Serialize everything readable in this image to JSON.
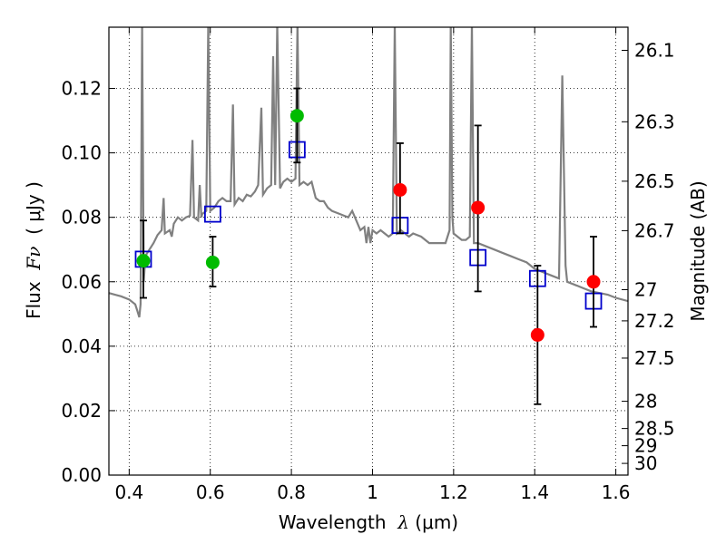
{
  "chart_data": {
    "type": "scatter",
    "xlabel_prefix": "Wavelength  ",
    "xlabel_symbol": "λ",
    "xlabel_unit": " (μm)",
    "ylabel_prefix": "Flux  ",
    "ylabel_symbol": "Fν",
    "ylabel_unit": "  ( μJy )",
    "y2label": "Magnitude (AB)",
    "xlim": [
      0.35,
      1.63
    ],
    "ylim": [
      0.0,
      0.139
    ],
    "grid": true,
    "x_ticks": [
      0.4,
      0.6,
      0.8,
      1.0,
      1.2,
      1.4,
      1.6
    ],
    "x_tick_labels": [
      "0.4",
      "0.6",
      "0.8",
      "1",
      "1.2",
      "1.4",
      "1.6"
    ],
    "y_ticks": [
      0.0,
      0.02,
      0.04,
      0.06,
      0.08,
      0.1,
      0.12
    ],
    "y_tick_labels": [
      "0.00",
      "0.02",
      "0.04",
      "0.06",
      "0.08",
      "0.10",
      "0.12"
    ],
    "mag_ticks": [
      26.1,
      26.3,
      26.5,
      26.7,
      27.0,
      27.2,
      27.5,
      28.0,
      28.5,
      29.0,
      30.0
    ],
    "mag_tick_labels": [
      "26.1",
      "26.3",
      "26.5",
      "26.7",
      "27",
      "27.2",
      "27.5",
      "28",
      "28.5",
      "29",
      "30"
    ],
    "model_spectrum": {
      "color": "#808080",
      "points": [
        [
          0.35,
          0.0565
        ],
        [
          0.38,
          0.0555
        ],
        [
          0.4,
          0.0545
        ],
        [
          0.415,
          0.053
        ],
        [
          0.42,
          0.051
        ],
        [
          0.425,
          0.049
        ],
        [
          0.428,
          0.053
        ],
        [
          0.432,
          0.14
        ],
        [
          0.436,
          0.06
        ],
        [
          0.44,
          0.068
        ],
        [
          0.45,
          0.07
        ],
        [
          0.46,
          0.072
        ],
        [
          0.47,
          0.0745
        ],
        [
          0.48,
          0.076
        ],
        [
          0.485,
          0.086
        ],
        [
          0.488,
          0.075
        ],
        [
          0.5,
          0.076
        ],
        [
          0.505,
          0.074
        ],
        [
          0.51,
          0.078
        ],
        [
          0.52,
          0.08
        ],
        [
          0.53,
          0.079
        ],
        [
          0.54,
          0.08
        ],
        [
          0.55,
          0.0805
        ],
        [
          0.556,
          0.104
        ],
        [
          0.56,
          0.08
        ],
        [
          0.57,
          0.079
        ],
        [
          0.574,
          0.09
        ],
        [
          0.578,
          0.08
        ],
        [
          0.58,
          0.081
        ],
        [
          0.59,
          0.082
        ],
        [
          0.595,
          0.14
        ],
        [
          0.6,
          0.082
        ],
        [
          0.61,
          0.083
        ],
        [
          0.62,
          0.085
        ],
        [
          0.63,
          0.086
        ],
        [
          0.64,
          0.085
        ],
        [
          0.65,
          0.085
        ],
        [
          0.656,
          0.115
        ],
        [
          0.66,
          0.084
        ],
        [
          0.67,
          0.086
        ],
        [
          0.68,
          0.085
        ],
        [
          0.69,
          0.087
        ],
        [
          0.7,
          0.0865
        ],
        [
          0.71,
          0.088
        ],
        [
          0.718,
          0.09
        ],
        [
          0.726,
          0.114
        ],
        [
          0.73,
          0.087
        ],
        [
          0.74,
          0.089
        ],
        [
          0.75,
          0.09
        ],
        [
          0.755,
          0.13
        ],
        [
          0.76,
          0.09
        ],
        [
          0.765,
          0.14
        ],
        [
          0.772,
          0.089
        ],
        [
          0.78,
          0.091
        ],
        [
          0.79,
          0.092
        ],
        [
          0.8,
          0.091
        ],
        [
          0.81,
          0.092
        ],
        [
          0.815,
          0.14
        ],
        [
          0.82,
          0.09
        ],
        [
          0.83,
          0.091
        ],
        [
          0.84,
          0.09
        ],
        [
          0.85,
          0.091
        ],
        [
          0.86,
          0.086
        ],
        [
          0.87,
          0.085
        ],
        [
          0.88,
          0.085
        ],
        [
          0.89,
          0.083
        ],
        [
          0.9,
          0.082
        ],
        [
          0.92,
          0.081
        ],
        [
          0.94,
          0.08
        ],
        [
          0.95,
          0.082
        ],
        [
          0.96,
          0.079
        ],
        [
          0.97,
          0.076
        ],
        [
          0.98,
          0.077
        ],
        [
          0.985,
          0.072
        ],
        [
          0.99,
          0.077
        ],
        [
          0.995,
          0.072
        ],
        [
          1.0,
          0.076
        ],
        [
          1.01,
          0.075
        ],
        [
          1.02,
          0.076
        ],
        [
          1.03,
          0.075
        ],
        [
          1.04,
          0.074
        ],
        [
          1.05,
          0.075
        ],
        [
          1.055,
          0.14
        ],
        [
          1.06,
          0.075
        ],
        [
          1.07,
          0.076
        ],
        [
          1.08,
          0.075
        ],
        [
          1.09,
          0.074
        ],
        [
          1.1,
          0.075
        ],
        [
          1.12,
          0.074
        ],
        [
          1.14,
          0.072
        ],
        [
          1.16,
          0.072
        ],
        [
          1.18,
          0.072
        ],
        [
          1.19,
          0.076
        ],
        [
          1.193,
          0.14
        ],
        [
          1.197,
          0.08
        ],
        [
          1.2,
          0.075
        ],
        [
          1.22,
          0.073
        ],
        [
          1.23,
          0.073
        ],
        [
          1.24,
          0.074
        ],
        [
          1.245,
          0.14
        ],
        [
          1.25,
          0.072
        ],
        [
          1.26,
          0.072
        ],
        [
          1.28,
          0.071
        ],
        [
          1.3,
          0.07
        ],
        [
          1.32,
          0.069
        ],
        [
          1.34,
          0.068
        ],
        [
          1.36,
          0.067
        ],
        [
          1.38,
          0.066
        ],
        [
          1.4,
          0.064
        ],
        [
          1.42,
          0.063
        ],
        [
          1.44,
          0.062
        ],
        [
          1.46,
          0.061
        ],
        [
          1.468,
          0.124
        ],
        [
          1.476,
          0.065
        ],
        [
          1.48,
          0.06
        ],
        [
          1.5,
          0.059
        ],
        [
          1.52,
          0.058
        ],
        [
          1.54,
          0.057
        ],
        [
          1.56,
          0.0565
        ],
        [
          1.58,
          0.056
        ],
        [
          1.6,
          0.055
        ],
        [
          1.63,
          0.054
        ]
      ]
    },
    "series": [
      {
        "marker": "circle",
        "color": "#00bb00",
        "points": [
          {
            "x": 0.435,
            "y": 0.0665,
            "yerr_low": 0.055,
            "yerr_high": 0.079
          },
          {
            "x": 0.606,
            "y": 0.066,
            "yerr_low": 0.0585,
            "yerr_high": 0.074
          },
          {
            "x": 0.814,
            "y": 0.1115,
            "yerr_low": 0.097,
            "yerr_high": 0.12
          }
        ]
      },
      {
        "marker": "circle",
        "color": "#ff0000",
        "points": [
          {
            "x": 1.068,
            "y": 0.0885,
            "yerr_low": 0.075,
            "yerr_high": 0.103
          },
          {
            "x": 1.26,
            "y": 0.083,
            "yerr_low": 0.057,
            "yerr_high": 0.1085
          },
          {
            "x": 1.407,
            "y": 0.0435,
            "yerr_low": 0.022,
            "yerr_high": 0.065
          },
          {
            "x": 1.545,
            "y": 0.06,
            "yerr_low": 0.046,
            "yerr_high": 0.074
          }
        ]
      },
      {
        "marker": "open-square",
        "color": "#0000cc",
        "points": [
          {
            "x": 0.435,
            "y": 0.067
          },
          {
            "x": 0.606,
            "y": 0.081
          },
          {
            "x": 0.814,
            "y": 0.101
          },
          {
            "x": 1.068,
            "y": 0.0775
          },
          {
            "x": 1.26,
            "y": 0.0675
          },
          {
            "x": 1.407,
            "y": 0.061
          },
          {
            "x": 1.545,
            "y": 0.054
          }
        ]
      }
    ]
  }
}
